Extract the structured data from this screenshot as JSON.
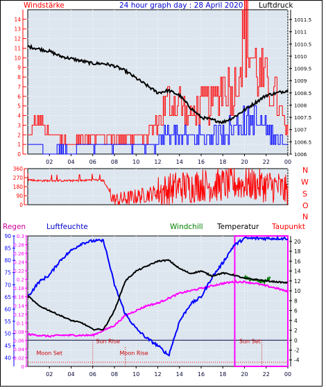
{
  "header": {
    "left_label": "Windstärke",
    "title": "24 hour graph day : 28 April 2020",
    "right_label": "Luftdruck"
  },
  "middle": {
    "compass_labels": [
      "N",
      "W",
      "S",
      "O",
      "N"
    ]
  },
  "bottom_header": {
    "regen": "Regen",
    "luftfeuchte": "Luftfeuchte",
    "windchill": "Windchill",
    "temperatur": "Temperatur",
    "taupunkt": "Taupunkt"
  },
  "colors": {
    "wind_gust": "#ff0000",
    "wind_avg": "#0000ff",
    "pressure": "#000000",
    "direction": "#ff0000",
    "humidity": "#0000ff",
    "temperature": "#000000",
    "dewpoint": "#ff00ff",
    "windchill": "#008000",
    "rain_axis": "#ff00ff",
    "axis_red": "#ff0000",
    "axis_blue": "#0000ff"
  },
  "chart_data": [
    {
      "type": "line",
      "name": "wind-pressure",
      "x_ticks": [
        "02",
        "04",
        "06",
        "08",
        "10",
        "12",
        "14",
        "16",
        "18",
        "20",
        "22",
        "00"
      ],
      "y_left_ticks": [
        "0",
        "1",
        "2",
        "3",
        "4",
        "5",
        "6",
        "7",
        "8",
        "9",
        "10",
        "11",
        "12",
        "13",
        "14"
      ],
      "y_right_ticks": [
        "1006",
        "1006.5",
        "1007",
        "1007.5",
        "1008",
        "1008.5",
        "1009",
        "1009.5",
        "1010",
        "1010.5",
        "1011",
        "1011.5"
      ],
      "ylim_left": [
        0,
        15
      ],
      "ylim_right": [
        1006,
        1011.9
      ],
      "pressure": {
        "x": [
          0,
          1,
          2,
          3,
          4,
          5,
          6,
          7,
          8,
          9,
          10,
          11,
          12,
          13,
          14,
          15,
          16,
          17,
          18,
          19,
          20,
          21,
          22,
          23,
          24
        ],
        "y": [
          1010.4,
          1010.3,
          1010.2,
          1010.0,
          1009.9,
          1009.8,
          1009.7,
          1009.7,
          1009.6,
          1009.4,
          1009.1,
          1008.8,
          1008.5,
          1008.6,
          1008.4,
          1007.9,
          1007.5,
          1007.4,
          1007.3,
          1007.5,
          1007.8,
          1008.1,
          1008.4,
          1008.5,
          1008.6
        ]
      },
      "gust": {
        "x": [
          0,
          1,
          2,
          3,
          4,
          5,
          6,
          7,
          8,
          9,
          10,
          11,
          12,
          13,
          14,
          15,
          16,
          17,
          18,
          19,
          20,
          21,
          22,
          23,
          24
        ],
        "y": [
          2,
          4,
          2,
          2,
          1,
          2,
          2,
          2,
          2,
          2,
          2,
          2,
          4,
          6,
          6,
          4,
          6,
          6,
          8,
          7,
          14,
          10,
          8,
          6,
          2
        ]
      },
      "avg": {
        "x": [
          0,
          1,
          2,
          3,
          4,
          5,
          6,
          7,
          8,
          9,
          10,
          11,
          12,
          13,
          14,
          15,
          16,
          17,
          18,
          19,
          20,
          21,
          22,
          23,
          24
        ],
        "y": [
          1,
          1,
          0,
          1,
          0,
          1,
          1,
          1,
          1,
          1,
          1,
          1,
          1,
          3,
          2,
          2,
          2,
          2,
          3,
          3,
          4,
          4,
          3,
          2,
          1
        ]
      }
    },
    {
      "type": "line",
      "name": "wind-direction",
      "x_ticks": [
        "02",
        "04",
        "06",
        "08",
        "10",
        "12",
        "14",
        "16",
        "18",
        "20",
        "22",
        "00"
      ],
      "y_ticks": [
        "0",
        "90",
        "180",
        "270",
        "360"
      ],
      "ylim": [
        0,
        360
      ],
      "direction": {
        "x": [
          0,
          1,
          2,
          3,
          4,
          5,
          6,
          7,
          8,
          9,
          10,
          11,
          12,
          13,
          14,
          15,
          16,
          17,
          18,
          19,
          20,
          21,
          22,
          23,
          24
        ],
        "y": [
          250,
          240,
          240,
          240,
          240,
          240,
          250,
          240,
          40,
          60,
          80,
          100,
          130,
          150,
          180,
          180,
          200,
          190,
          200,
          210,
          210,
          200,
          190,
          180,
          120
        ]
      }
    },
    {
      "type": "line",
      "name": "temp-humidity",
      "x_ticks": [
        "02",
        "04",
        "06",
        "08",
        "10",
        "12",
        "14",
        "16",
        "18",
        "20",
        "22",
        "00"
      ],
      "y_regen_ticks": [
        "0",
        "0.02",
        "0.04",
        "0.06",
        "0.08",
        "0.1",
        "0.12",
        "0.14",
        "0.16",
        "0.18",
        "0.2",
        "0.22",
        "0.24",
        "0.26",
        "0.28",
        "0.3"
      ],
      "y_humidity_ticks": [
        "40",
        "45",
        "50",
        "55",
        "60",
        "65",
        "70",
        "75",
        "80",
        "85",
        "90"
      ],
      "y_temp_ticks": [
        "-4",
        "-2",
        "0",
        "2",
        "4",
        "6",
        "8",
        "10",
        "12",
        "14",
        "16",
        "18",
        "20"
      ],
      "ylim_humidity": [
        36.5,
        90
      ],
      "ylim_temp": [
        -5.3,
        21.1
      ],
      "ylim_regen": [
        0,
        0.3
      ],
      "annotations": [
        "Sun Rise",
        "Sun Set",
        "Moon Set",
        "Moon Rise"
      ],
      "humidity": {
        "x": [
          0,
          1,
          2,
          3,
          4,
          5,
          6,
          7,
          8,
          9,
          10,
          11,
          12,
          13,
          14,
          15,
          16,
          17,
          18,
          19,
          20,
          21,
          22,
          23,
          24
        ],
        "y": [
          65,
          71,
          74,
          80,
          84,
          87,
          88,
          88,
          70,
          58,
          52,
          48,
          45,
          41,
          55,
          62,
          65,
          73,
          79,
          86,
          89,
          89,
          89,
          89,
          89
        ]
      },
      "temperature": {
        "x": [
          0,
          1,
          2,
          3,
          4,
          5,
          6,
          7,
          8,
          9,
          10,
          11,
          12,
          13,
          14,
          15,
          16,
          17,
          18,
          19,
          20,
          21,
          22,
          23,
          24
        ],
        "y": [
          9,
          7,
          6,
          5,
          4,
          3.5,
          2.2,
          2.2,
          6,
          12,
          14,
          15,
          16,
          16.2,
          14.5,
          13.5,
          14,
          13,
          13.6,
          13.2,
          12.5,
          12.3,
          12,
          11.8,
          11.6
        ]
      },
      "dewpoint": {
        "x": [
          0,
          1,
          2,
          3,
          4,
          5,
          6,
          7,
          8,
          9,
          10,
          11,
          12,
          13,
          14,
          15,
          16,
          17,
          18,
          19,
          20,
          21,
          22,
          23,
          24
        ],
        "y": [
          1.2,
          1,
          0.8,
          1,
          1,
          1,
          1,
          2,
          3,
          5,
          6,
          7,
          7.5,
          8.5,
          9.5,
          10,
          10.5,
          11,
          11.5,
          11.8,
          11.8,
          11.5,
          11,
          10.5,
          9.8
        ]
      },
      "windchill": {
        "x": [
          20,
          20.6,
          21.2,
          21.8,
          22.4
        ],
        "y": [
          12.8,
          12.3,
          12,
          11.8,
          12.6
        ]
      },
      "rain_box": {
        "x_start": 19.1,
        "x_end": 24,
        "value": 0.3
      }
    }
  ]
}
